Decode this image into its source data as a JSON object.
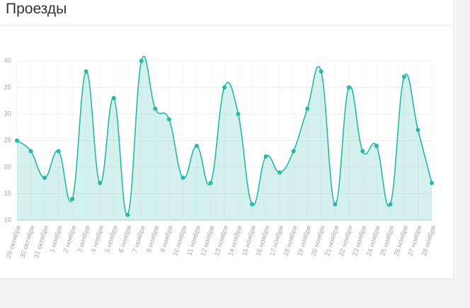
{
  "chart_data": {
    "type": "area",
    "title": "Проезды",
    "categories": [
      "29 октября",
      "30 октября",
      "31 октября",
      "1 ноября",
      "2 ноября",
      "3 ноября",
      "4 ноября",
      "5 ноября",
      "6 ноября",
      "7 ноября",
      "8 ноября",
      "9 ноября",
      "10 ноября",
      "11 ноября",
      "12 ноября",
      "13 ноября",
      "14 ноября",
      "15 ноября",
      "16 ноября",
      "17 ноября",
      "18 ноября",
      "19 ноября",
      "20 ноября",
      "21 ноября",
      "22 ноября",
      "23 ноября",
      "24 ноября",
      "25 ноября",
      "26 ноября",
      "27 ноября",
      "28 ноября"
    ],
    "values": [
      25,
      23,
      18,
      23,
      14,
      38,
      17,
      33,
      11,
      40,
      31,
      29,
      18,
      24,
      17,
      35,
      30,
      13,
      22,
      19,
      23,
      31,
      38,
      13,
      35,
      23,
      24,
      13,
      37,
      27,
      17
    ],
    "color": "#26b8a8",
    "ylim": [
      10,
      40
    ],
    "yticks": [
      10,
      15,
      20,
      25,
      30,
      35,
      40
    ],
    "grid": true
  }
}
